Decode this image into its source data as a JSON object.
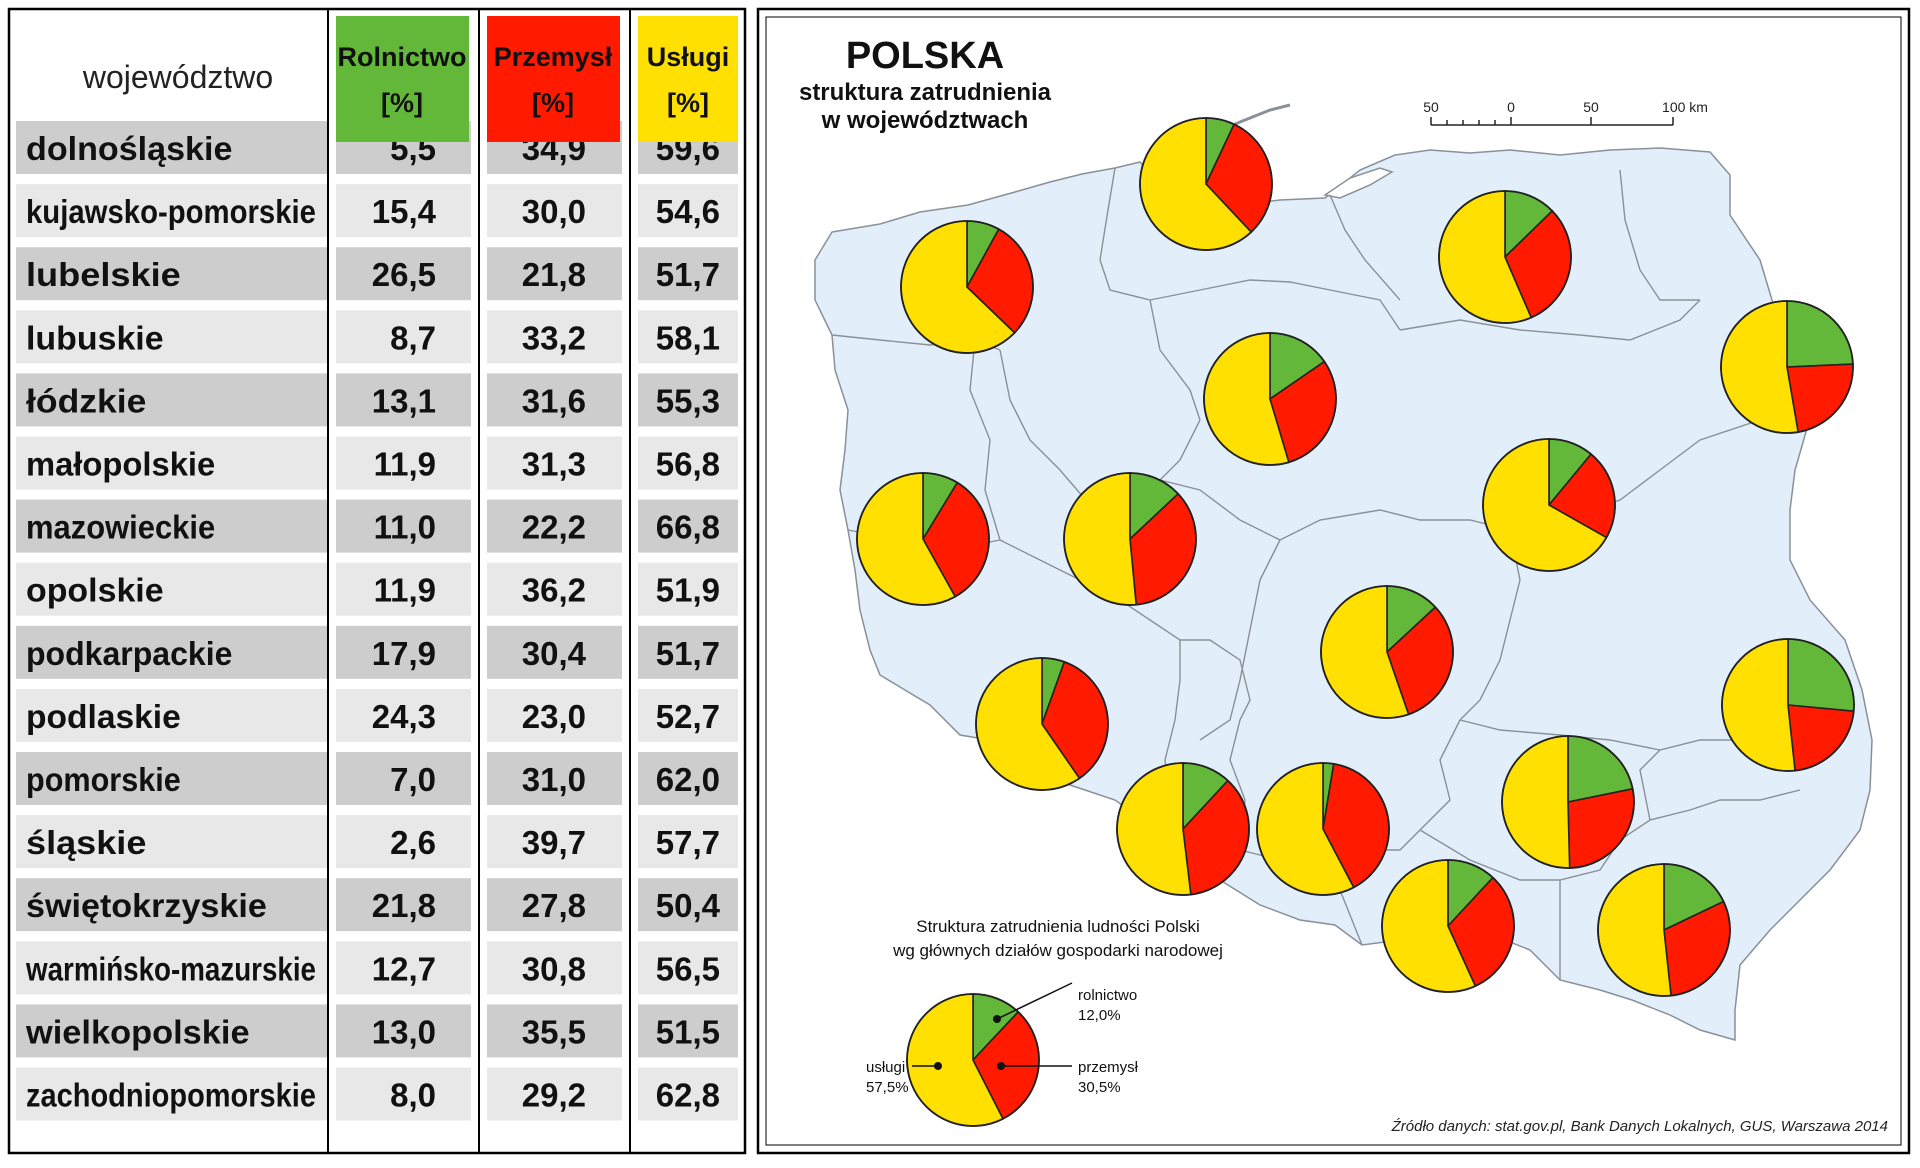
{
  "table": {
    "col_region": "województwo",
    "col_agri": [
      "Rolnictwo",
      "[%]"
    ],
    "col_ind": [
      "Przemysł",
      "[%]"
    ],
    "col_serv": [
      "Usługi",
      "[%]"
    ]
  },
  "colors": {
    "agri": "#63b83a",
    "ind": "#ff1a00",
    "serv": "#ffe000",
    "land": "#e2effa",
    "rowDark": "#cdcdcd",
    "rowLight": "#e8e8e8"
  },
  "map": {
    "title": "POLSKA",
    "subtitle": [
      "struktura zatrudnienia",
      "w województwach"
    ],
    "scale": {
      "labels": [
        "50",
        "0",
        "50",
        "100 km"
      ]
    },
    "legend": {
      "title": [
        "Struktura zatrudnienia ludności Polski",
        "wg głównych działów gospodarki narodowej"
      ],
      "agri_label": "rolnictwo",
      "agri_value": "12,0%",
      "ind_label": "przemysł",
      "ind_value": "30,5%",
      "serv_label": "usługi",
      "serv_value": "57,5%"
    },
    "source": "Źródło danych: stat.gov.pl, Bank Danych Lokalnych, GUS, Warszawa 2014"
  },
  "chart_data": {
    "type": "table",
    "title": "POLSKA — struktura zatrudnienia w województwach",
    "columns": [
      "województwo",
      "Rolnictwo [%]",
      "Przemysł [%]",
      "Usługi [%]"
    ],
    "rows": [
      {
        "name": "dolnośląskie",
        "agri": 5.5,
        "ind": 34.9,
        "serv": 59.6,
        "agri_s": "5,5",
        "ind_s": "34,9",
        "serv_s": "59,6"
      },
      {
        "name": "kujawsko-pomorskie",
        "agri": 15.4,
        "ind": 30.0,
        "serv": 54.6,
        "agri_s": "15,4",
        "ind_s": "30,0",
        "serv_s": "54,6"
      },
      {
        "name": "lubelskie",
        "agri": 26.5,
        "ind": 21.8,
        "serv": 51.7,
        "agri_s": "26,5",
        "ind_s": "21,8",
        "serv_s": "51,7"
      },
      {
        "name": "lubuskie",
        "agri": 8.7,
        "ind": 33.2,
        "serv": 58.1,
        "agri_s": "8,7",
        "ind_s": "33,2",
        "serv_s": "58,1"
      },
      {
        "name": "łódzkie",
        "agri": 13.1,
        "ind": 31.6,
        "serv": 55.3,
        "agri_s": "13,1",
        "ind_s": "31,6",
        "serv_s": "55,3"
      },
      {
        "name": "małopolskie",
        "agri": 11.9,
        "ind": 31.3,
        "serv": 56.8,
        "agri_s": "11,9",
        "ind_s": "31,3",
        "serv_s": "56,8"
      },
      {
        "name": "mazowieckie",
        "agri": 11.0,
        "ind": 22.2,
        "serv": 66.8,
        "agri_s": "11,0",
        "ind_s": "22,2",
        "serv_s": "66,8"
      },
      {
        "name": "opolskie",
        "agri": 11.9,
        "ind": 36.2,
        "serv": 51.9,
        "agri_s": "11,9",
        "ind_s": "36,2",
        "serv_s": "51,9"
      },
      {
        "name": "podkarpackie",
        "agri": 17.9,
        "ind": 30.4,
        "serv": 51.7,
        "agri_s": "17,9",
        "ind_s": "30,4",
        "serv_s": "51,7"
      },
      {
        "name": "podlaskie",
        "agri": 24.3,
        "ind": 23.0,
        "serv": 52.7,
        "agri_s": "24,3",
        "ind_s": "23,0",
        "serv_s": "52,7"
      },
      {
        "name": "pomorskie",
        "agri": 7.0,
        "ind": 31.0,
        "serv": 62.0,
        "agri_s": "7,0",
        "ind_s": "31,0",
        "serv_s": "62,0"
      },
      {
        "name": "śląskie",
        "agri": 2.6,
        "ind": 39.7,
        "serv": 57.7,
        "agri_s": "2,6",
        "ind_s": "39,7",
        "serv_s": "57,7"
      },
      {
        "name": "świętokrzyskie",
        "agri": 21.8,
        "ind": 27.8,
        "serv": 50.4,
        "agri_s": "21,8",
        "ind_s": "27,8",
        "serv_s": "50,4"
      },
      {
        "name": "warmińsko-mazurskie",
        "agri": 12.7,
        "ind": 30.8,
        "serv": 56.5,
        "agri_s": "12,7",
        "ind_s": "30,8",
        "serv_s": "56,5"
      },
      {
        "name": "wielkopolskie",
        "agri": 13.0,
        "ind": 35.5,
        "serv": 51.5,
        "agri_s": "13,0",
        "ind_s": "35,5",
        "serv_s": "51,5"
      },
      {
        "name": "zachodniopomorskie",
        "agri": 8.0,
        "ind": 29.2,
        "serv": 62.8,
        "agri_s": "8,0",
        "ind_s": "29,2",
        "serv_s": "62,8"
      }
    ],
    "legend_pie": {
      "agri": 12.0,
      "ind": 30.5,
      "serv": 57.5
    }
  }
}
